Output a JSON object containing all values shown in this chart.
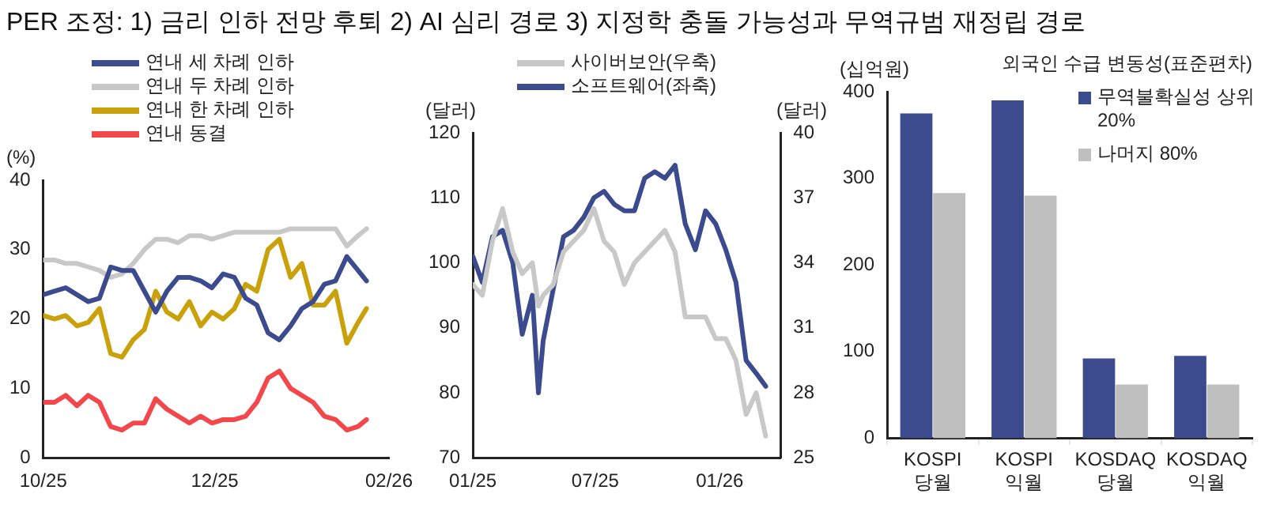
{
  "chart_data": [
    {
      "type": "line",
      "title": "PER 조정: 1) 금리 인하 전망 후퇴 2) AI 심리 경로 3) 지정학 충돌 가능성과 무역규범 재정립 경로",
      "ylabel": "(%)",
      "x": [
        "2025-10-01",
        "2025-10-05",
        "2025-10-09",
        "2025-10-13",
        "2025-10-17",
        "2025-10-21",
        "2025-10-25",
        "2025-10-29",
        "2025-11-02",
        "2025-11-06",
        "2025-11-10",
        "2025-11-14",
        "2025-11-18",
        "2025-11-22",
        "2025-11-26",
        "2025-11-30",
        "2025-12-04",
        "2025-12-08",
        "2025-12-12",
        "2025-12-16",
        "2025-12-20",
        "2025-12-24",
        "2025-12-28",
        "2026-01-01",
        "2026-01-05",
        "2026-01-09",
        "2026-01-13",
        "2026-01-17",
        "2026-01-21",
        "2026-01-24"
      ],
      "series": [
        {
          "name": "연내 세 차례 인하",
          "color": "#3c4a8e",
          "values": [
            23.5,
            24,
            24.5,
            23.5,
            22.5,
            23,
            27.5,
            27,
            27,
            24,
            21,
            24,
            26,
            26,
            25.5,
            24.5,
            26.5,
            26,
            23,
            22,
            18,
            17,
            19,
            21.5,
            22.5,
            25,
            25.5,
            29,
            27,
            25.5
          ]
        },
        {
          "name": "연내 두 차례 인하",
          "color": "#c8c8c8",
          "values": [
            28.5,
            28.5,
            28,
            28,
            27.5,
            27,
            26,
            26.5,
            28,
            30,
            31.5,
            31.5,
            31,
            32,
            32,
            31.5,
            32,
            32.5,
            32.5,
            32.5,
            32.5,
            32.5,
            33,
            33,
            33,
            33,
            33,
            30.5,
            32,
            33
          ]
        },
        {
          "name": "연내 한 차례 인하",
          "color": "#c9a10a",
          "values": [
            20.5,
            20,
            20.5,
            19,
            19.5,
            21.5,
            15,
            14.5,
            17,
            18.5,
            24,
            21,
            20,
            22.5,
            19,
            21,
            20,
            21.5,
            25,
            24,
            30,
            31.5,
            26,
            28,
            22,
            22,
            24,
            16.5,
            19.5,
            21.5
          ]
        },
        {
          "name": "연내 동결",
          "color": "#f4474c",
          "values": [
            8,
            8,
            9,
            7.5,
            9,
            8,
            4.5,
            4,
            5,
            5,
            8.5,
            7,
            6,
            5,
            6,
            5,
            5.5,
            5.5,
            6,
            8,
            11.5,
            12.5,
            10,
            9,
            8,
            6,
            5.5,
            4,
            4.5,
            5.5
          ]
        }
      ],
      "xlim": [
        "2025-10-01",
        "2026-02-01"
      ],
      "xticks": [
        {
          "value": "2025-10-01",
          "label": "10/25"
        },
        {
          "value": "2025-12-01",
          "label": "12/25"
        },
        {
          "value": "2026-02-01",
          "label": "02/26"
        }
      ],
      "ylim": [
        0,
        40
      ],
      "yticks": [
        0,
        10,
        20,
        30,
        40
      ],
      "grid": false,
      "legend": "top",
      "marker": "none",
      "line_style": "solid"
    },
    {
      "type": "line",
      "ylabel": "(달러)",
      "y2label": "(달러)",
      "x": [
        "2025-01-01",
        "2025-01-15",
        "2025-01-30",
        "2025-02-14",
        "2025-03-01",
        "2025-03-15",
        "2025-03-30",
        "2025-04-08",
        "2025-04-15",
        "2025-04-30",
        "2025-05-15",
        "2025-05-30",
        "2025-06-14",
        "2025-06-29",
        "2025-07-14",
        "2025-07-29",
        "2025-08-13",
        "2025-08-28",
        "2025-09-12",
        "2025-09-27",
        "2025-10-12",
        "2025-10-27",
        "2025-11-11",
        "2025-11-26",
        "2025-12-11",
        "2025-12-26",
        "2026-01-10",
        "2026-01-25",
        "2026-02-09",
        "2026-02-24",
        "2026-03-10"
      ],
      "series": [
        {
          "name": "사이버보안(우축)",
          "color": "#c8c8c8",
          "axis": "y2",
          "values": [
            33,
            32.5,
            35,
            36.5,
            34.5,
            33.5,
            34,
            32,
            32.5,
            33,
            34.5,
            35,
            35.5,
            36.5,
            35,
            34.5,
            33,
            34,
            34.5,
            35,
            35.5,
            34.5,
            31.5,
            31.5,
            31.5,
            30.5,
            30.5,
            29.5,
            27,
            28,
            26
          ]
        },
        {
          "name": "소프트웨어(좌축)",
          "color": "#3c4a8e",
          "axis": "y",
          "values": [
            101,
            97,
            104,
            105,
            100,
            89,
            95,
            80,
            88,
            96,
            104,
            105,
            107,
            110,
            111,
            109,
            108,
            108,
            113,
            114,
            113,
            115,
            106,
            102,
            108,
            106,
            102,
            97,
            85,
            83,
            81
          ]
        }
      ],
      "xlim": [
        "2025-01-01",
        "2026-04-01"
      ],
      "xticks": [
        {
          "value": "2025-01-01",
          "label": "01/25"
        },
        {
          "value": "2025-07-01",
          "label": "07/25"
        },
        {
          "value": "2026-01-01",
          "label": "01/26"
        }
      ],
      "ylim": [
        70,
        120
      ],
      "yticks": [
        70,
        80,
        90,
        100,
        110,
        120
      ],
      "y2lim": [
        25,
        40
      ],
      "y2ticks": [
        25,
        28,
        31,
        34,
        37,
        40
      ],
      "grid": false,
      "legend": "top",
      "marker": "none",
      "line_style": "solid"
    },
    {
      "type": "bar",
      "title": "외국인 수급 변동성(표준편차)",
      "ylabel": "(십억원)",
      "categories": [
        "KOSPI 당월",
        "KOSPI 익월",
        "KOSDAQ 당월",
        "KOSDAQ 익월"
      ],
      "series": [
        {
          "name": "무역불확실성 상위 20%",
          "color": "#3c4a8e",
          "values": [
            375,
            390,
            92,
            95
          ]
        },
        {
          "name": "나머지 80%",
          "color": "#bfbfbf",
          "values": [
            283,
            280,
            62,
            62
          ]
        }
      ],
      "ylim": [
        0,
        400
      ],
      "yticks": [
        0,
        100,
        200,
        300,
        400
      ],
      "grid": false,
      "legend": "top right"
    }
  ]
}
